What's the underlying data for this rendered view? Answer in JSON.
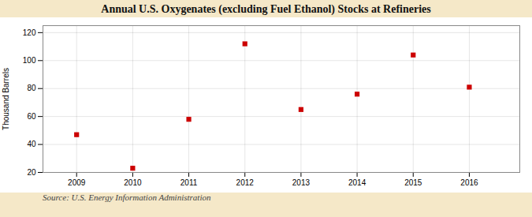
{
  "chart_data": {
    "type": "scatter",
    "title": "Annual U.S. Oxygenates (excluding Fuel Ethanol) Stocks at Refineries",
    "ylabel": "Thousand Barrels",
    "annotations": [
      "Source: U.S. Energy Information Administration"
    ],
    "x": [
      2009,
      2010,
      2011,
      2012,
      2013,
      2014,
      2015,
      2016
    ],
    "values": [
      47,
      23,
      58,
      112,
      65,
      76,
      104,
      81
    ],
    "color": "#cc0000",
    "marker": "square",
    "xlim": [
      2008.4,
      2016.9
    ],
    "ylim": [
      20,
      125
    ],
    "xticks": [
      2009,
      2010,
      2011,
      2012,
      2013,
      2014,
      2015,
      2016
    ],
    "yticks": [
      20,
      40,
      60,
      80,
      100,
      120
    ],
    "grid": true
  }
}
